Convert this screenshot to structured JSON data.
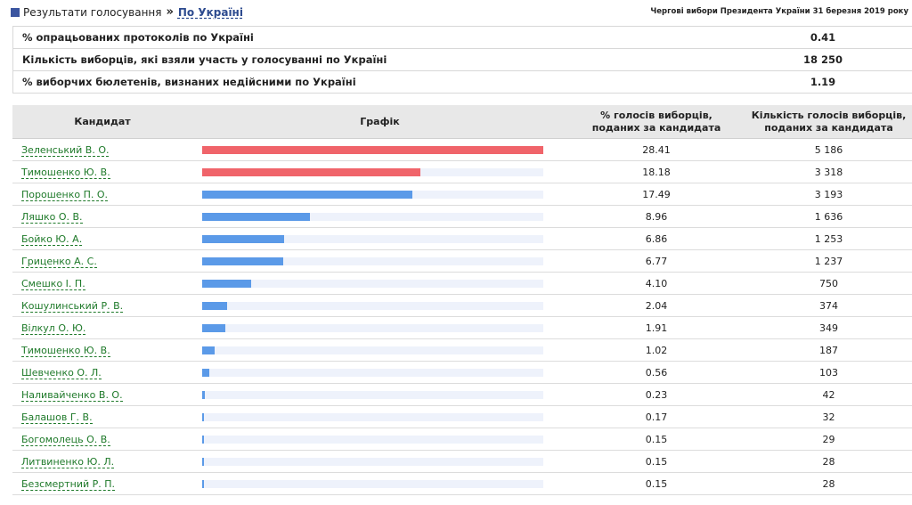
{
  "breadcrumb": {
    "results_label": "Результати голосування",
    "separator": "»",
    "current": "По Україні"
  },
  "election_title": "Чергові вибори Президента України 31 березня 2019 року",
  "summary": [
    {
      "label": "% опрацьованих протоколів по Україні",
      "value": "0.41"
    },
    {
      "label": "Кількість виборців, які взяли участь у голосуванні по Україні",
      "value": "18 250"
    },
    {
      "label": "% виборчих бюлетенів, визнаних недійсними по Україні",
      "value": "1.19"
    }
  ],
  "table": {
    "headers": {
      "candidate": "Кандидат",
      "graph": "Графік",
      "percent_line1": "% голосів виборців,",
      "percent_line2": "поданих за кандидата",
      "count_line1": "Кількість голосів виборців,",
      "count_line2": "поданих за кандидата"
    },
    "max_percent": 28.41,
    "rows": [
      {
        "name": "Зеленський В. О.",
        "percent": "28.41",
        "count": "5 186",
        "bar": 28.41,
        "color": "#f0646a"
      },
      {
        "name": "Тимошенко Ю. В.",
        "percent": "18.18",
        "count": "3 318",
        "bar": 18.18,
        "color": "#f0646a"
      },
      {
        "name": "Порошенко П. О.",
        "percent": "17.49",
        "count": "3 193",
        "bar": 17.49,
        "color": "#5b9ae8"
      },
      {
        "name": "Ляшко О. В.",
        "percent": "8.96",
        "count": "1 636",
        "bar": 8.96,
        "color": "#5b9ae8"
      },
      {
        "name": "Бойко Ю. А.",
        "percent": "6.86",
        "count": "1 253",
        "bar": 6.86,
        "color": "#5b9ae8"
      },
      {
        "name": "Гриценко А. С.",
        "percent": "6.77",
        "count": "1 237",
        "bar": 6.77,
        "color": "#5b9ae8"
      },
      {
        "name": "Смешко І. П.",
        "percent": "4.10",
        "count": "750",
        "bar": 4.1,
        "color": "#5b9ae8"
      },
      {
        "name": "Кошулинський Р. В.",
        "percent": "2.04",
        "count": "374",
        "bar": 2.04,
        "color": "#5b9ae8"
      },
      {
        "name": "Вілкул О. Ю.",
        "percent": "1.91",
        "count": "349",
        "bar": 1.91,
        "color": "#5b9ae8"
      },
      {
        "name": "Тимошенко Ю. В.",
        "percent": "1.02",
        "count": "187",
        "bar": 1.02,
        "color": "#5b9ae8"
      },
      {
        "name": "Шевченко О. Л.",
        "percent": "0.56",
        "count": "103",
        "bar": 0.56,
        "color": "#5b9ae8"
      },
      {
        "name": "Наливайченко В. О.",
        "percent": "0.23",
        "count": "42",
        "bar": 0.23,
        "color": "#5b9ae8"
      },
      {
        "name": "Балашов Г. В.",
        "percent": "0.17",
        "count": "32",
        "bar": 0.17,
        "color": "#5b9ae8"
      },
      {
        "name": "Богомолець О. В.",
        "percent": "0.15",
        "count": "29",
        "bar": 0.15,
        "color": "#5b9ae8"
      },
      {
        "name": "Литвиненко Ю. Л.",
        "percent": "0.15",
        "count": "28",
        "bar": 0.15,
        "color": "#5b9ae8"
      },
      {
        "name": "Безсмертний Р. П.",
        "percent": "0.15",
        "count": "28",
        "bar": 0.15,
        "color": "#5b9ae8"
      }
    ]
  }
}
